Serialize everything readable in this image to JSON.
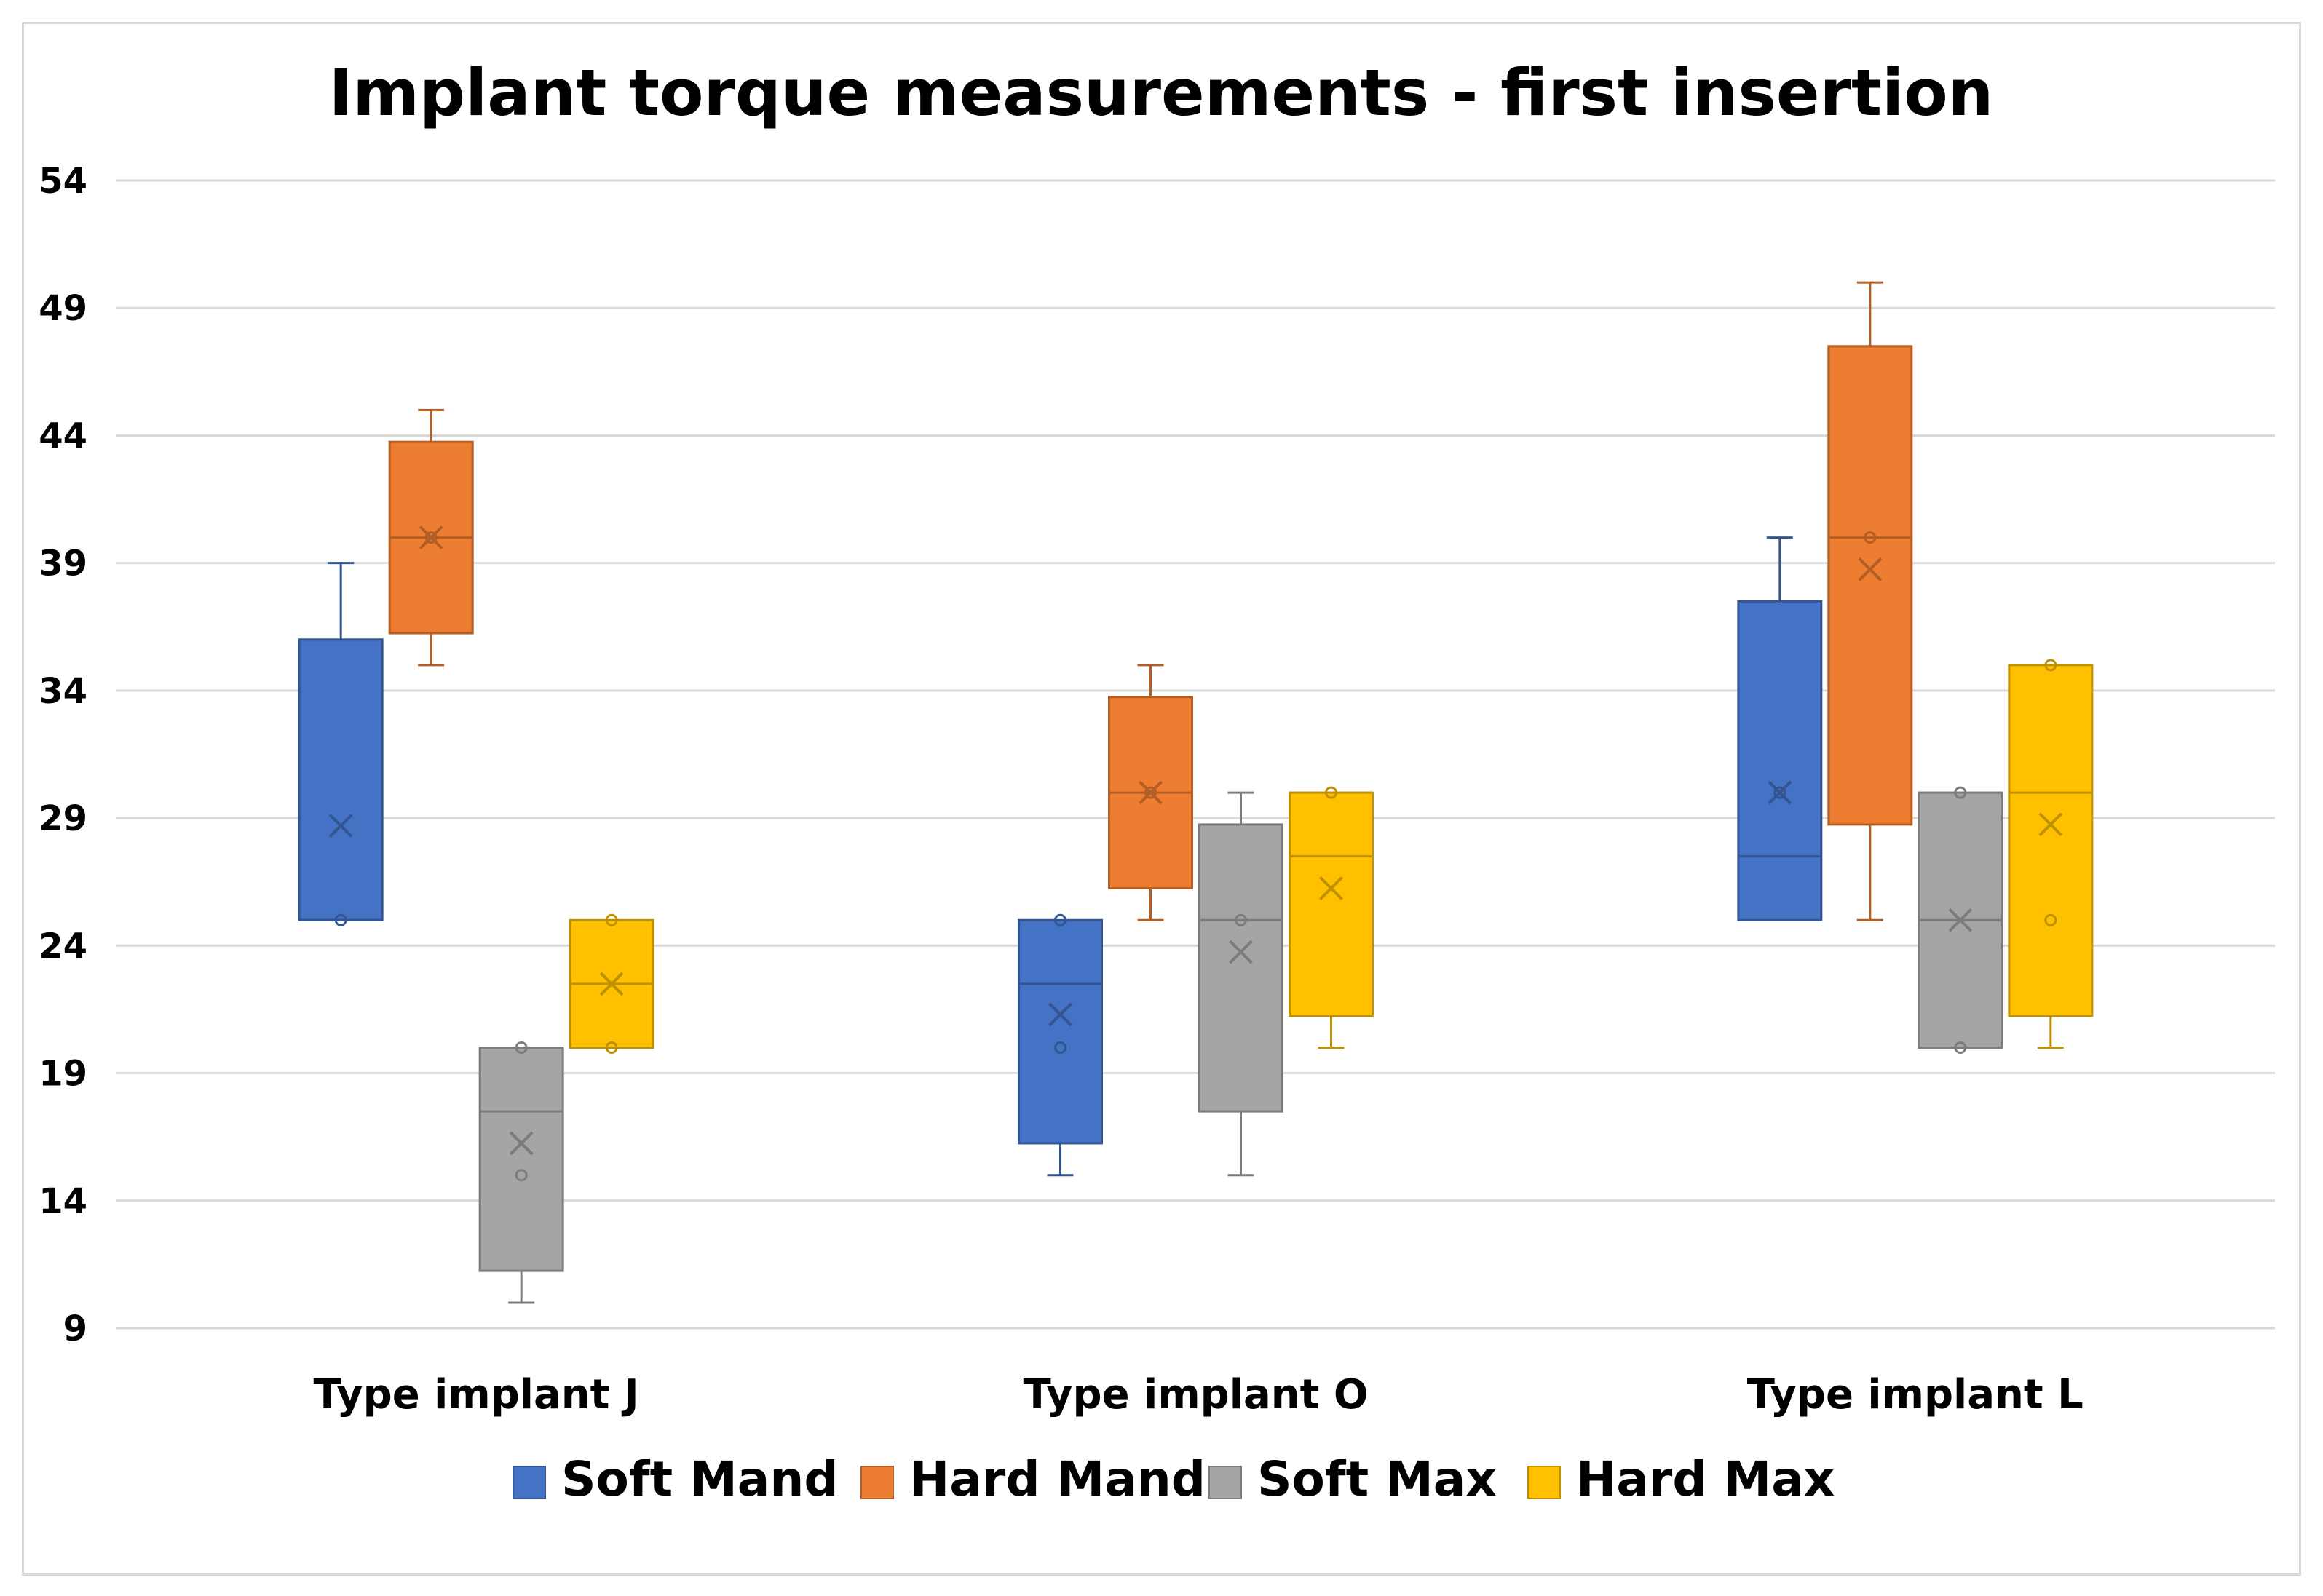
{
  "chart_data": {
    "type": "box",
    "title": "Implant torque measurements - first insertion",
    "xlabel": "",
    "ylabel": "",
    "ylim": [
      9,
      54
    ],
    "yticks": [
      9,
      14,
      19,
      24,
      29,
      34,
      39,
      44,
      49,
      54
    ],
    "grid": true,
    "legend_position": "bottom",
    "categories": [
      "Type implant J",
      "Type implant O",
      "Type implant L"
    ],
    "series": [
      {
        "name": "Soft Mand",
        "color": "#4472C4",
        "boxes": [
          {
            "min": 25,
            "q1": 25,
            "median": 25,
            "q3": 36,
            "max": 39,
            "mean": 28.7,
            "points": [
              25
            ]
          },
          {
            "min": 15,
            "q1": 16.25,
            "median": 22.5,
            "q3": 25,
            "max": 25,
            "mean": 21.3,
            "points": [
              20,
              25
            ]
          },
          {
            "min": 25,
            "q1": 25,
            "median": 27.5,
            "q3": 37.5,
            "max": 40,
            "mean": 30,
            "points": [
              30
            ]
          }
        ]
      },
      {
        "name": "Hard Mand",
        "color": "#ED7D31",
        "boxes": [
          {
            "min": 35,
            "q1": 36.25,
            "median": 40,
            "q3": 43.75,
            "max": 45,
            "mean": 40,
            "points": [
              40
            ]
          },
          {
            "min": 25,
            "q1": 26.25,
            "median": 30,
            "q3": 33.75,
            "max": 35,
            "mean": 30,
            "points": [
              30
            ]
          },
          {
            "min": 25,
            "q1": 28.75,
            "median": 40,
            "q3": 47.5,
            "max": 50,
            "mean": 38.75,
            "points": [
              40
            ]
          }
        ]
      },
      {
        "name": "Soft Max",
        "color": "#A5A5A5",
        "boxes": [
          {
            "min": 10,
            "q1": 11.25,
            "median": 17.5,
            "q3": 20,
            "max": 20,
            "mean": 16.25,
            "points": [
              15,
              20
            ]
          },
          {
            "min": 15,
            "q1": 17.5,
            "median": 25,
            "q3": 28.75,
            "max": 30,
            "mean": 23.75,
            "points": [
              25
            ]
          },
          {
            "min": 20,
            "q1": 20,
            "median": 25,
            "q3": 30,
            "max": 30,
            "mean": 25,
            "points": [
              20,
              30
            ]
          }
        ]
      },
      {
        "name": "Hard Max",
        "color": "#FFC000",
        "boxes": [
          {
            "min": 20,
            "q1": 20,
            "median": 22.5,
            "q3": 25,
            "max": 25,
            "mean": 22.5,
            "points": [
              20,
              25
            ]
          },
          {
            "min": 20,
            "q1": 21.25,
            "median": 27.5,
            "q3": 30,
            "max": 30,
            "mean": 26.25,
            "points": [
              30
            ]
          },
          {
            "min": 20,
            "q1": 21.25,
            "median": 30,
            "q3": 35,
            "max": 35,
            "mean": 28.75,
            "points": [
              25,
              35
            ]
          }
        ]
      }
    ]
  }
}
